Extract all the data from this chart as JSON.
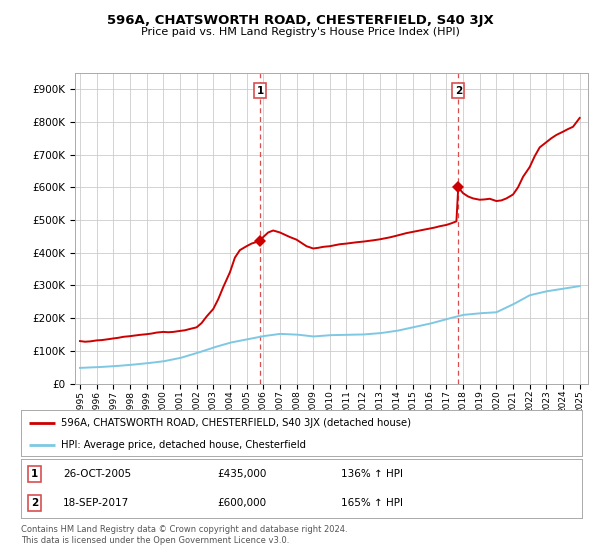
{
  "title": "596A, CHATSWORTH ROAD, CHESTERFIELD, S40 3JX",
  "subtitle": "Price paid vs. HM Land Registry's House Price Index (HPI)",
  "ylabel_ticks": [
    "£0",
    "£100K",
    "£200K",
    "£300K",
    "£400K",
    "£500K",
    "£600K",
    "£700K",
    "£800K",
    "£900K"
  ],
  "ytick_values": [
    0,
    100000,
    200000,
    300000,
    400000,
    500000,
    600000,
    700000,
    800000,
    900000
  ],
  "ylim": [
    0,
    950000
  ],
  "xlim_start": 1994.7,
  "xlim_end": 2025.5,
  "sale1_x": 2005.81,
  "sale1_y": 435000,
  "sale2_x": 2017.71,
  "sale2_y": 600000,
  "sale1_date": "26-OCT-2005",
  "sale1_price": "£435,000",
  "sale1_hpi": "136% ↑ HPI",
  "sale2_date": "18-SEP-2017",
  "sale2_price": "£600,000",
  "sale2_hpi": "165% ↑ HPI",
  "hpi_color": "#7ec8e3",
  "price_color": "#cc0000",
  "vline_color": "#d94f4f",
  "background_color": "#ffffff",
  "grid_color": "#cccccc",
  "legend_label_price": "596A, CHATSWORTH ROAD, CHESTERFIELD, S40 3JX (detached house)",
  "legend_label_hpi": "HPI: Average price, detached house, Chesterfield",
  "footer": "Contains HM Land Registry data © Crown copyright and database right 2024.\nThis data is licensed under the Open Government Licence v3.0.",
  "hpi_x": [
    1995,
    1996,
    1997,
    1998,
    1999,
    2000,
    2001,
    2002,
    2003,
    2004,
    2005,
    2006,
    2007,
    2008,
    2009,
    2010,
    2011,
    2012,
    2013,
    2014,
    2015,
    2016,
    2017,
    2018,
    2019,
    2020,
    2021,
    2022,
    2023,
    2024,
    2025
  ],
  "hpi_y": [
    48000,
    50000,
    53000,
    57000,
    62000,
    68000,
    78000,
    93000,
    110000,
    125000,
    135000,
    145000,
    152000,
    150000,
    144000,
    148000,
    149000,
    150000,
    154000,
    161000,
    172000,
    183000,
    197000,
    210000,
    215000,
    218000,
    242000,
    270000,
    282000,
    290000,
    298000
  ],
  "price_x": [
    1995.0,
    1995.3,
    1995.6,
    1996.0,
    1996.3,
    1996.6,
    1997.0,
    1997.3,
    1997.6,
    1998.0,
    1998.3,
    1998.6,
    1999.0,
    1999.3,
    1999.6,
    2000.0,
    2000.3,
    2000.6,
    2001.0,
    2001.3,
    2001.6,
    2002.0,
    2002.3,
    2002.6,
    2003.0,
    2003.3,
    2003.6,
    2004.0,
    2004.3,
    2004.6,
    2005.0,
    2005.3,
    2005.6,
    2005.81,
    2006.0,
    2006.3,
    2006.6,
    2007.0,
    2007.3,
    2007.6,
    2008.0,
    2008.3,
    2008.6,
    2009.0,
    2009.3,
    2009.6,
    2010.0,
    2010.3,
    2010.6,
    2011.0,
    2011.3,
    2011.6,
    2012.0,
    2012.3,
    2012.6,
    2013.0,
    2013.3,
    2013.6,
    2014.0,
    2014.3,
    2014.6,
    2015.0,
    2015.3,
    2015.6,
    2016.0,
    2016.3,
    2016.6,
    2017.0,
    2017.3,
    2017.6,
    2017.71,
    2018.0,
    2018.3,
    2018.6,
    2019.0,
    2019.3,
    2019.6,
    2020.0,
    2020.3,
    2020.6,
    2021.0,
    2021.3,
    2021.6,
    2022.0,
    2022.3,
    2022.6,
    2023.0,
    2023.3,
    2023.6,
    2024.0,
    2024.3,
    2024.6,
    2025.0
  ],
  "price_y": [
    130000,
    128000,
    129000,
    132000,
    133000,
    135000,
    138000,
    140000,
    143000,
    145000,
    147000,
    149000,
    151000,
    153000,
    156000,
    158000,
    157000,
    158000,
    161000,
    163000,
    167000,
    172000,
    185000,
    205000,
    228000,
    258000,
    295000,
    340000,
    385000,
    408000,
    420000,
    428000,
    433000,
    435000,
    448000,
    462000,
    468000,
    462000,
    455000,
    448000,
    440000,
    430000,
    420000,
    413000,
    415000,
    418000,
    420000,
    423000,
    426000,
    428000,
    430000,
    432000,
    434000,
    436000,
    438000,
    441000,
    444000,
    447000,
    452000,
    456000,
    460000,
    464000,
    467000,
    470000,
    474000,
    477000,
    481000,
    485000,
    490000,
    496000,
    600000,
    582000,
    572000,
    566000,
    562000,
    563000,
    565000,
    558000,
    560000,
    566000,
    578000,
    600000,
    632000,
    662000,
    695000,
    722000,
    738000,
    750000,
    760000,
    770000,
    778000,
    785000,
    812000
  ]
}
